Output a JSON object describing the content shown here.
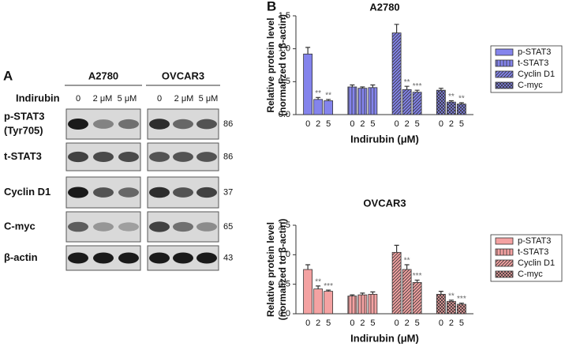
{
  "blot": {
    "panel_label": "A",
    "cell_lines": [
      "A2780",
      "OVCAR3"
    ],
    "treatment": "Indirubin",
    "doses": [
      "0",
      "2 μM",
      "5 μM"
    ],
    "rows": [
      {
        "label": [
          "p-STAT3",
          "(Tyr705)"
        ],
        "kda": "86"
      },
      {
        "label": [
          "t-STAT3"
        ],
        "kda": "86"
      },
      {
        "label": [
          "Cyclin D1"
        ],
        "kda": "37"
      },
      {
        "label": [
          "C-myc"
        ],
        "kda": "65"
      },
      {
        "label": [
          "β-actin"
        ],
        "kda": "43"
      }
    ]
  },
  "panel_b_label": "B",
  "chart_data": [
    {
      "type": "bar",
      "title": "A2780",
      "xlabel": "Indirubin (μM)",
      "ylabel": [
        "Relative protein level",
        "(normalized to β-actin)"
      ],
      "categories": [
        "0",
        "2",
        "5"
      ],
      "ylim": [
        0,
        1.5
      ],
      "yticks": [
        {
          "value": 0,
          "label": "0.0"
        },
        {
          "value": 0.5,
          "label": "0.5"
        },
        {
          "value": 1.0,
          "label": "1.0"
        },
        {
          "value": 1.5,
          "label": "1.5"
        }
      ],
      "legend": "outside right",
      "series": [
        {
          "name": "p-STAT3",
          "color": "#8484ec",
          "hatch": "none",
          "values": [
            0.92,
            0.23,
            0.21
          ],
          "errors": [
            0.1,
            0.03,
            0.02
          ],
          "significance": [
            null,
            "**",
            "**"
          ]
        },
        {
          "name": "t-STAT3",
          "color": "#8484ec",
          "hatch": "vertical",
          "values": [
            0.42,
            0.4,
            0.41
          ],
          "errors": [
            0.03,
            0.02,
            0.04
          ],
          "significance": [
            null,
            null,
            null
          ]
        },
        {
          "name": "Cyclin D1",
          "color": "#8484ec",
          "hatch": "diagonal",
          "values": [
            1.24,
            0.38,
            0.34
          ],
          "errors": [
            0.13,
            0.05,
            0.03
          ],
          "significance": [
            null,
            "**",
            "***"
          ]
        },
        {
          "name": "C-myc",
          "color": "#8484ec",
          "hatch": "cross",
          "values": [
            0.37,
            0.19,
            0.16
          ],
          "errors": [
            0.03,
            0.02,
            0.02
          ],
          "significance": [
            null,
            "**",
            "**"
          ]
        }
      ]
    },
    {
      "type": "bar",
      "title": "OVCAR3",
      "xlabel": "Indirubin (μM)",
      "ylabel": [
        "Relative protein level",
        "(normalized to β-actin)"
      ],
      "categories": [
        "0",
        "2",
        "5"
      ],
      "ylim": [
        0,
        1.5
      ],
      "yticks": [
        {
          "value": 0,
          "label": "0.0"
        },
        {
          "value": 0.5,
          "label": "0.5"
        },
        {
          "value": 1.0,
          "label": "1.0"
        },
        {
          "value": 1.5,
          "label": "1.5"
        }
      ],
      "legend": "outside right",
      "series": [
        {
          "name": "p-STAT3",
          "color": "#f4a2a2",
          "hatch": "none",
          "values": [
            0.75,
            0.42,
            0.38
          ],
          "errors": [
            0.08,
            0.05,
            0.02
          ],
          "significance": [
            null,
            "**",
            "***"
          ]
        },
        {
          "name": "t-STAT3",
          "color": "#f4a2a2",
          "hatch": "vertical",
          "values": [
            0.3,
            0.32,
            0.33
          ],
          "errors": [
            0.02,
            0.03,
            0.04
          ],
          "significance": [
            null,
            null,
            null
          ]
        },
        {
          "name": "Cyclin D1",
          "color": "#f4a2a2",
          "hatch": "diagonal",
          "values": [
            1.04,
            0.75,
            0.53
          ],
          "errors": [
            0.12,
            0.08,
            0.04
          ],
          "significance": [
            null,
            "**",
            "***"
          ]
        },
        {
          "name": "C-myc",
          "color": "#f4a2a2",
          "hatch": "cross",
          "values": [
            0.33,
            0.21,
            0.16
          ],
          "errors": [
            0.05,
            0.02,
            0.02
          ],
          "significance": [
            null,
            "**",
            "***"
          ]
        }
      ]
    }
  ]
}
